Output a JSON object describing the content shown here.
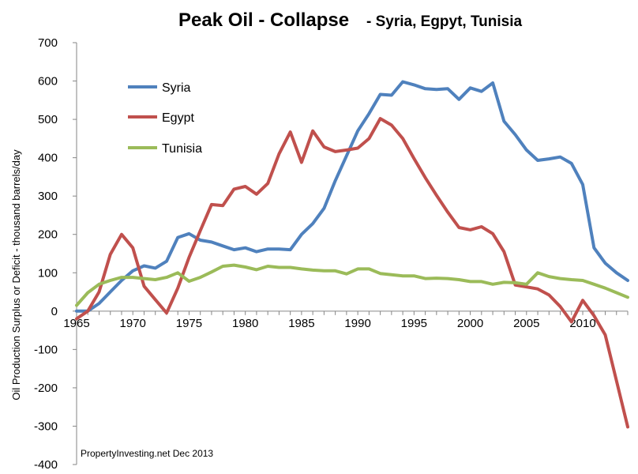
{
  "chart_data": {
    "type": "line",
    "title": "Peak Oil -  Collapse",
    "subtitle": "- Syria, Egpyt, Tunisia",
    "ylabel": "Oil Production Surplus or Deficit  - thousand  barrels/day",
    "xlabel": "",
    "note": "PropertyInvesting.net  Dec 2013",
    "xlim": [
      1965,
      2014
    ],
    "ylim": [
      -400,
      700
    ],
    "x_ticks": [
      1965,
      1970,
      1975,
      1980,
      1985,
      1990,
      1995,
      2000,
      2005,
      2010
    ],
    "y_ticks": [
      -400,
      -300,
      -200,
      -100,
      0,
      100,
      200,
      300,
      400,
      500,
      600,
      700
    ],
    "grid": false,
    "legend_position": "top-left",
    "x": [
      1965,
      1966,
      1967,
      1968,
      1969,
      1970,
      1971,
      1972,
      1973,
      1974,
      1975,
      1976,
      1977,
      1978,
      1979,
      1980,
      1981,
      1982,
      1983,
      1984,
      1985,
      1986,
      1987,
      1988,
      1989,
      1990,
      1991,
      1992,
      1993,
      1994,
      1995,
      1996,
      1997,
      1998,
      1999,
      2000,
      2001,
      2002,
      2003,
      2004,
      2005,
      2006,
      2007,
      2008,
      2009,
      2010,
      2011,
      2012,
      2013,
      2014
    ],
    "series": [
      {
        "name": "Syria",
        "color": "#4f81bd",
        "values": [
          0,
          0,
          20,
          50,
          80,
          105,
          118,
          112,
          130,
          192,
          202,
          185,
          180,
          170,
          160,
          165,
          155,
          162,
          162,
          160,
          200,
          228,
          268,
          340,
          405,
          470,
          515,
          565,
          563,
          598,
          590,
          580,
          578,
          580,
          552,
          582,
          573,
          595,
          495,
          460,
          420,
          393,
          397,
          402,
          385,
          330,
          165,
          125,
          100,
          80
        ]
      },
      {
        "name": "Egypt",
        "color": "#c0504d",
        "values": [
          -20,
          0,
          50,
          148,
          200,
          165,
          65,
          30,
          -5,
          60,
          140,
          210,
          278,
          275,
          318,
          325,
          305,
          333,
          410,
          467,
          388,
          470,
          428,
          416,
          420,
          425,
          450,
          502,
          485,
          450,
          398,
          348,
          302,
          258,
          218,
          212,
          220,
          202,
          155,
          68,
          63,
          58,
          42,
          12,
          -28,
          28,
          -12,
          -62,
          -182,
          -302
        ]
      },
      {
        "name": "Tunisia",
        "color": "#9bbb59",
        "values": [
          15,
          48,
          70,
          80,
          88,
          88,
          85,
          82,
          88,
          100,
          78,
          88,
          102,
          117,
          120,
          115,
          108,
          117,
          114,
          114,
          110,
          107,
          105,
          105,
          97,
          110,
          110,
          98,
          95,
          92,
          92,
          85,
          86,
          85,
          82,
          77,
          77,
          70,
          75,
          74,
          70,
          100,
          90,
          85,
          82,
          80,
          70,
          60,
          48,
          36
        ]
      }
    ]
  }
}
